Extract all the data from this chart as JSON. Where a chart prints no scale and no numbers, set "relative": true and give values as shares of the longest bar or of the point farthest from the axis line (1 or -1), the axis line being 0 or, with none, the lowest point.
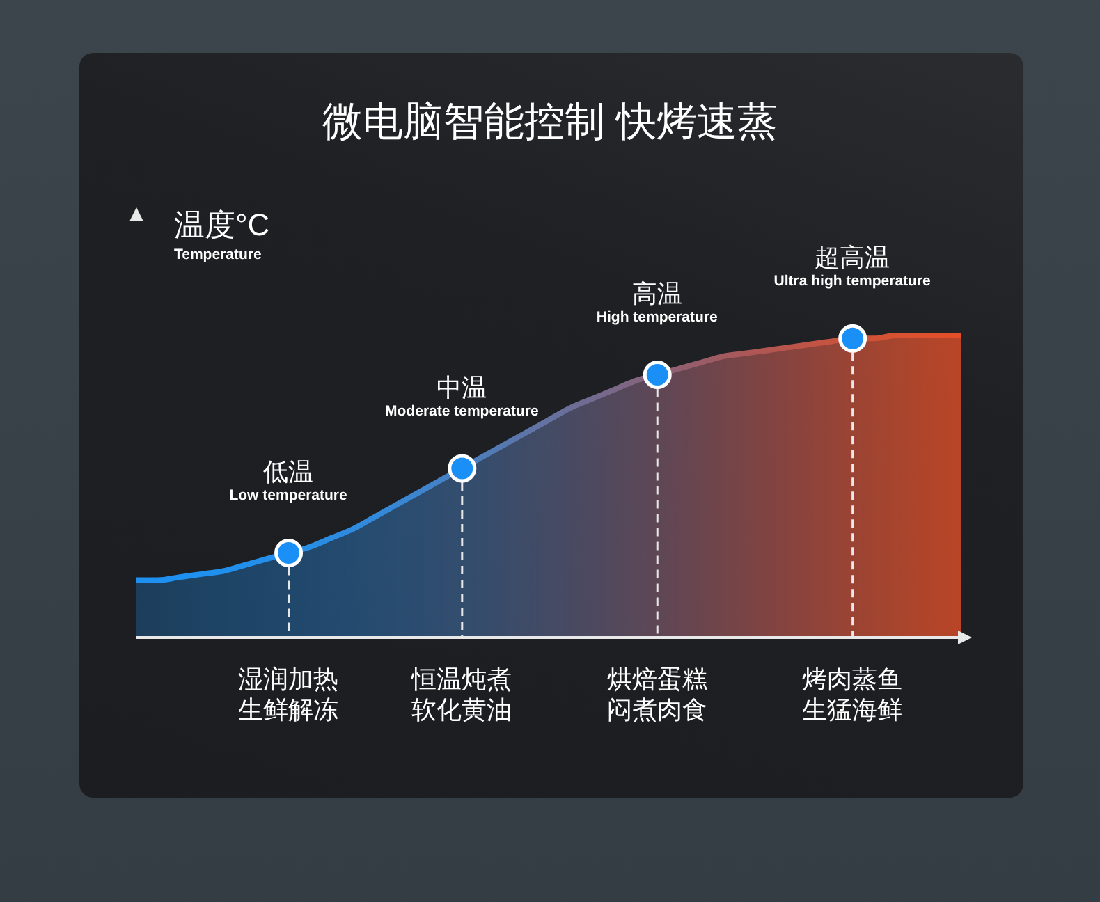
{
  "chart_data": {
    "type": "area",
    "title": "微电脑智能控制 快烤速蒸",
    "ylabel": "温度°C\nTemperature",
    "relative": true,
    "tick_labels": "x",
    "categories": [
      null,
      null,
      null,
      null,
      null,
      null,
      null,
      "湿润加热生鲜解冻",
      null,
      null,
      null,
      null,
      null,
      null,
      null,
      "恒温炖煮软化黄油",
      null,
      null,
      null,
      null,
      null,
      null,
      null,
      null,
      "烘焙蛋糕闷煮肉食",
      null,
      null,
      null,
      null,
      null,
      null,
      null,
      null,
      "烤肉蒸鱼生猛海鲜",
      null,
      null,
      null,
      null,
      null
    ],
    "series": [
      {
        "colors": [
          "#1e90f0",
          "#1e90f0",
          "#1e90f0",
          "#1f90ef",
          "#2090ee",
          "#218fec",
          "#238fea",
          "#258ee8",
          "#288de5",
          "#2b8ce2",
          "#2f8bde",
          "#3389da",
          "#3887d5",
          "#3e85cf",
          "#4482c8",
          "#4a80c0",
          "#507cb8",
          "#5778b0",
          "#5e75a8",
          "#6572a0",
          "#6c6e98",
          "#736b90",
          "#7a6888",
          "#826580",
          "#8a6278",
          "#925f70",
          "#9a5c68",
          "#a25a60",
          "#aa5858",
          "#b25652",
          "#b9554c",
          "#c05446",
          "#c65340",
          "#cc523b",
          "#d25236",
          "#d75232",
          "#dc512e",
          "#e0502b",
          "#e44f28"
        ],
        "values": [
          0.19,
          0.19,
          0.2,
          0.21,
          0.22,
          0.24,
          0.26,
          0.28,
          0.3,
          0.33,
          0.36,
          0.4,
          0.44,
          0.48,
          0.52,
          0.56,
          0.6,
          0.64,
          0.68,
          0.72,
          0.76,
          0.79,
          0.82,
          0.85,
          0.87,
          0.89,
          0.91,
          0.93,
          0.94,
          0.95,
          0.96,
          0.97,
          0.98,
          0.99,
          0.99,
          1,
          1,
          1,
          1
        ]
      },
      {
        "type": "lollipop",
        "color": "#1a8ff5",
        "marker": "circle",
        "line_style": "dashed",
        "values": [
          null,
          null,
          null,
          null,
          null,
          null,
          null,
          0.28,
          null,
          null,
          null,
          null,
          null,
          null,
          null,
          0.56,
          null,
          null,
          null,
          null,
          null,
          null,
          null,
          null,
          0.87,
          null,
          null,
          null,
          null,
          null,
          null,
          null,
          null,
          0.99,
          null,
          null,
          null,
          null,
          null
        ]
      }
    ],
    "annotations": [
      {
        "text": "低温\nLow temperature",
        "x": "湿润加热生鲜解冻",
        "y": 0.28
      },
      {
        "text": "中温\nModerate temperature",
        "x": "恒温炖煮软化黄油",
        "y": 0.56
      },
      {
        "text": "高温\nHigh temperature",
        "x": "烘焙蛋糕闷煮肉食",
        "y": 0.87
      },
      {
        "text": "超高温\nUltra high temperature",
        "x": "烤肉蒸鱼生猛海鲜",
        "y": 0.99
      }
    ]
  }
}
